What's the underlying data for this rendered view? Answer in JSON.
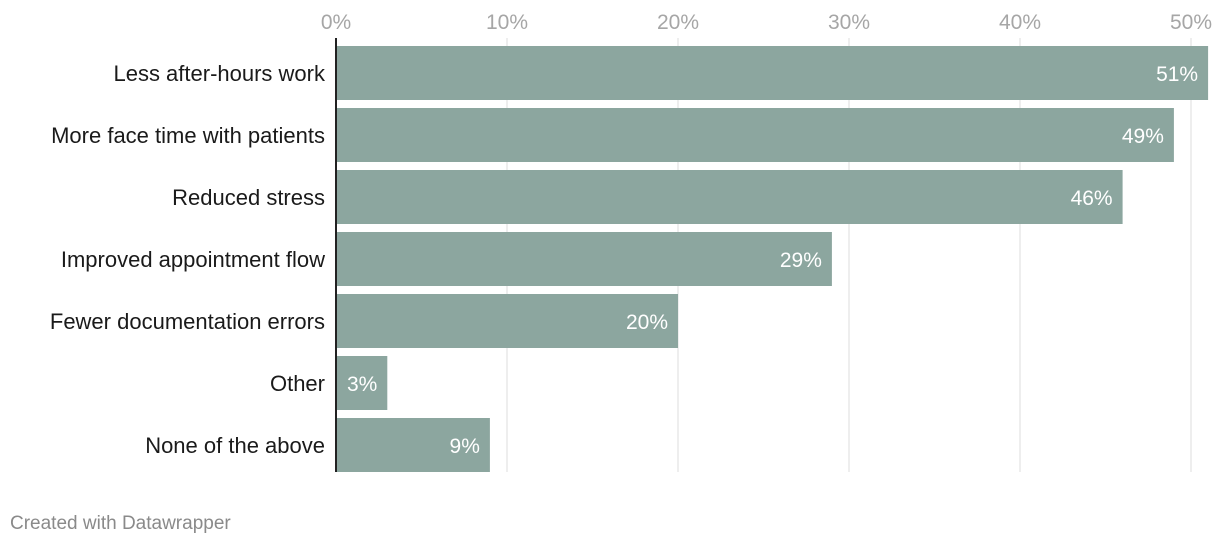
{
  "chart_data": {
    "type": "bar",
    "orientation": "horizontal",
    "categories": [
      "Less after-hours work",
      "More face time with patients",
      "Reduced stress",
      "Improved appointment flow",
      "Fewer documentation errors",
      "Other",
      "None of the above"
    ],
    "values": [
      51,
      49,
      46,
      29,
      20,
      3,
      9
    ],
    "value_labels": [
      "51%",
      "49%",
      "46%",
      "29%",
      "20%",
      "3%",
      "9%"
    ],
    "xlim": [
      0,
      52
    ],
    "x_ticks": [
      0,
      10,
      20,
      30,
      40,
      50
    ],
    "x_tick_labels": [
      "0%",
      "10%",
      "20%",
      "30%",
      "40%",
      "50%"
    ],
    "axis_position": "top",
    "grid": true,
    "legend": "none",
    "bar_color": "#8ca69f",
    "grid_color": "#dddddd",
    "title": "",
    "xlabel": "",
    "ylabel": ""
  },
  "footer": {
    "credit": "Created with Datawrapper"
  }
}
